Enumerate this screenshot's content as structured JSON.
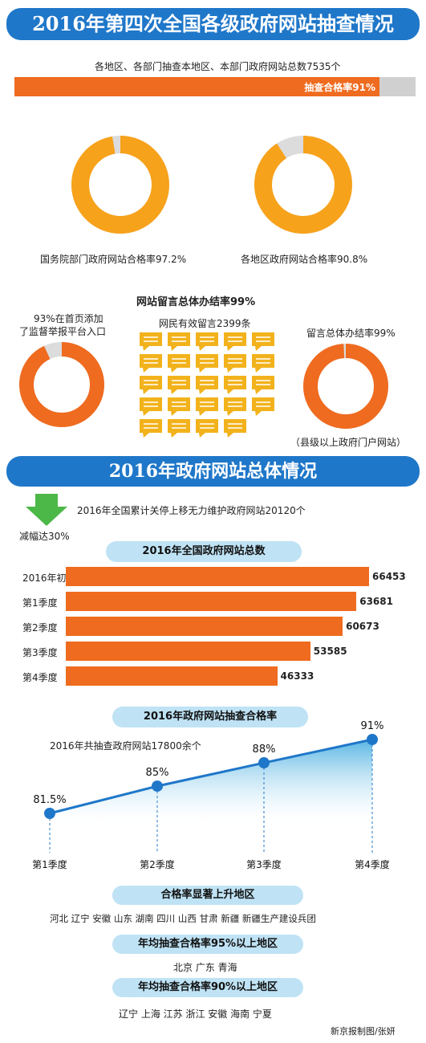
{
  "section1": {
    "title": "2016年第四次全国各级政府网站抽查情况",
    "total_text": "各地区、各部门抽查本地区、本部门政府网站总数7535个",
    "pass_bar_label": "抽查合格率91%",
    "pass_rate": 0.91
  },
  "donuts_top": [
    {
      "label": "国务院部门政府网站合格率97.2%",
      "value": 0.972,
      "color": "#f7a21b"
    },
    {
      "label": "各地区政府网站合格率90.8%",
      "value": 0.908,
      "color": "#f7a21b"
    }
  ],
  "messages": {
    "title": "网站留言总体办结率99%",
    "left_label_line1": "93%在首页添加",
    "left_label_line2": "了监督举报平台入口",
    "left_value": 0.93,
    "center_label": "网民有效留言2399条",
    "right_label": "留言总体办结率99%",
    "right_value": 0.99,
    "right_note": "（县级以上政府门户网站）",
    "left_color": "#ef6b1f",
    "right_color": "#ef6b1f",
    "bubble_color": "#f2b21b"
  },
  "section2": {
    "title": "2016年政府网站总体情况",
    "closure_text": "2016年全国累计关停上移无力维护政府网站20120个",
    "reduction_text": "减幅达30%",
    "arrow_color": "#4cb848"
  },
  "chart_data": [
    {
      "type": "bar",
      "title": "2016年全国政府网站总数",
      "categories": [
        "2016年初",
        "第1季度",
        "第2季度",
        "第3季度",
        "第4季度"
      ],
      "values": [
        66453,
        63681,
        60673,
        53585,
        46333
      ],
      "xlim": [
        0,
        66453
      ]
    },
    {
      "type": "area",
      "title": "2016年政府网站抽查合格率",
      "subtitle": "2016年共抽查政府网站17800余个",
      "categories": [
        "第1季度",
        "第2季度",
        "第3季度",
        "第4季度"
      ],
      "values": [
        81.5,
        85,
        88,
        91
      ],
      "value_labels": [
        "81.5%",
        "85%",
        "88%",
        "91%"
      ]
    }
  ],
  "regions": [
    {
      "title": "合格率显著上升地区",
      "items": "河北 辽宁 安徽 山东 湖南 四川 山西 甘肃 新疆 新疆生产建设兵团"
    },
    {
      "title": "年均抽查合格率95%以上地区",
      "items": "北京 广东 青海"
    },
    {
      "title": "年均抽查合格率90%以上地区",
      "items": "辽宁 上海 江苏 浙江 安徽 海南 宁夏"
    }
  ],
  "credit": "新京报制图/张妍"
}
